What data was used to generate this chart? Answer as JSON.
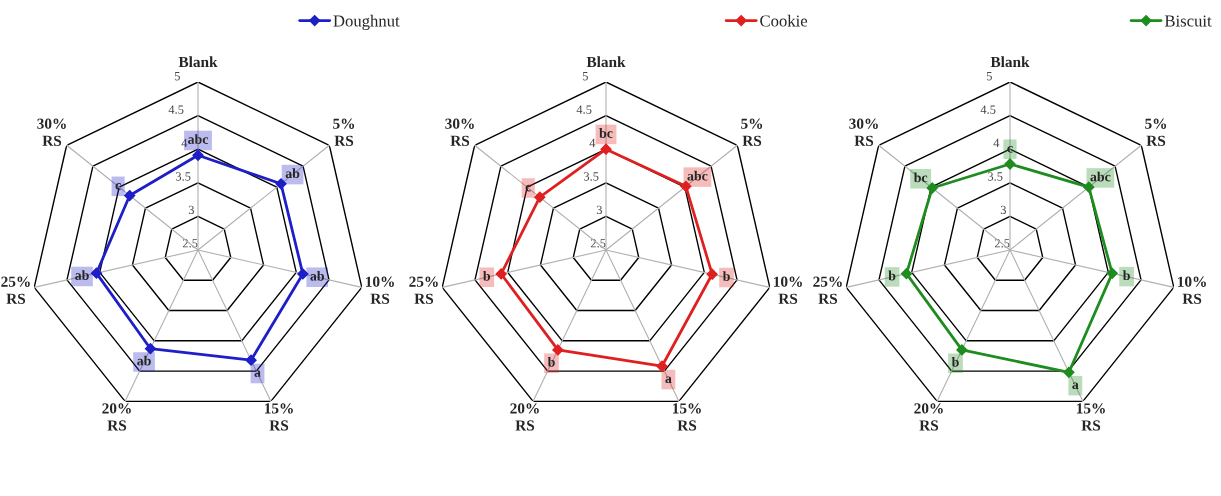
{
  "chart_data": [
    {
      "type": "radar",
      "categories": [
        "Blank",
        "5%\nRS",
        "10%\nRS",
        "15%\nRS",
        "20%\nRS",
        "25%\nRS",
        "30%\nRS"
      ],
      "ylim": [
        2.5,
        5
      ],
      "yticks": [
        2.5,
        3,
        3.5,
        4,
        4.5,
        5
      ],
      "legend": "top right",
      "marker": "diamond",
      "line_style": "solid",
      "series": [
        {
          "name": "Doughnut",
          "color": "#1f1fc8",
          "values": [
            3.91,
            4.08,
            4.1,
            4.32,
            4.13,
            4.05,
            3.8
          ],
          "value_labels": [
            "abc",
            "ab",
            "ab",
            "a",
            "ab",
            "ab",
            "c"
          ]
        }
      ]
    },
    {
      "type": "radar",
      "categories": [
        "Blank",
        "5%\nRS",
        "10%\nRS",
        "15%\nRS",
        "20%\nRS",
        "25%\nRS",
        "30%\nRS"
      ],
      "ylim": [
        2.5,
        5
      ],
      "yticks": [
        2.5,
        3,
        3.5,
        4,
        4.5,
        5
      ],
      "legend": "top right",
      "marker": "diamond",
      "line_style": "solid",
      "series": [
        {
          "name": "Cookie",
          "color": "#e02020",
          "values": [
            4.0,
            4.02,
            4.12,
            4.42,
            4.15,
            4.1,
            3.76
          ],
          "value_labels": [
            "bc",
            "abc",
            "b",
            "a",
            "b",
            "b",
            "c"
          ]
        }
      ]
    },
    {
      "type": "radar",
      "categories": [
        "Blank",
        "5%\nRS",
        "10%\nRS",
        "15%\nRS",
        "20%\nRS",
        "25%\nRS",
        "30%\nRS"
      ],
      "ylim": [
        2.5,
        5
      ],
      "yticks": [
        2.5,
        3,
        3.5,
        4,
        4.5,
        5
      ],
      "legend": "top right",
      "marker": "diamond",
      "line_style": "solid",
      "series": [
        {
          "name": "Biscuit",
          "color": "#1e8c1e",
          "values": [
            3.78,
            4.0,
            4.06,
            4.52,
            4.15,
            4.08,
            3.98
          ],
          "value_labels": [
            "c",
            "abc",
            "b",
            "a",
            "b",
            "b",
            "bc"
          ]
        }
      ]
    }
  ]
}
